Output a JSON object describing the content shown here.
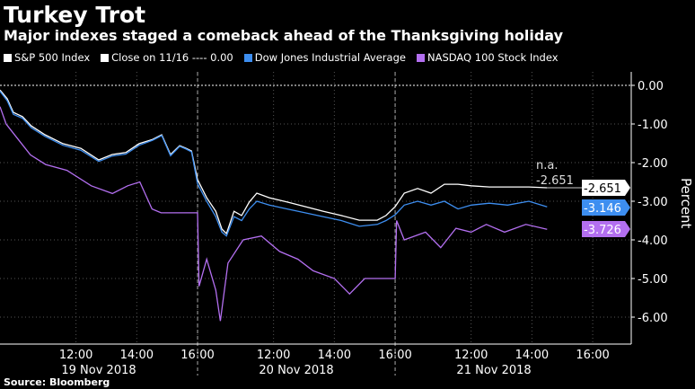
{
  "title": "Turkey Trot",
  "subtitle": "Major indexes staged a comeback ahead of the Thanksgiving holiday",
  "source": "Source: Bloomberg",
  "legend": {
    "sp": "S&P 500 Index",
    "close": "Close on 11/16 ---- 0.00",
    "dow": "Dow Jones Industrial Average",
    "ndx": "NASDAQ 100 Stock Index"
  },
  "annotation": {
    "na": "n.a.",
    "value": "-2.651"
  },
  "chart_data": {
    "type": "line",
    "ylabel": "Percent",
    "ylim": [
      -6.8,
      0.35
    ],
    "yticks": [
      "0.00",
      "-1.00",
      "-2.00",
      "-3.00",
      "-4.00",
      "-5.00",
      "-6.00"
    ],
    "x_units": "trading hours since 19 Nov 2018 09:30 (6.5h per session)",
    "xlim": [
      0,
      20.8
    ],
    "xticks": [
      {
        "x": 2.5,
        "label": "12:00"
      },
      {
        "x": 4.5,
        "label": "14:00"
      },
      {
        "x": 6.5,
        "label": "16:00"
      },
      {
        "x": 9,
        "label": "12:00"
      },
      {
        "x": 11,
        "label": "14:00"
      },
      {
        "x": 13,
        "label": "16:00"
      },
      {
        "x": 15.5,
        "label": "12:00"
      },
      {
        "x": 17.5,
        "label": "14:00"
      },
      {
        "x": 19.5,
        "label": "16:00"
      }
    ],
    "days": [
      {
        "x": 3.25,
        "label": "19 Nov 2018"
      },
      {
        "x": 9.75,
        "label": "20 Nov 2018"
      },
      {
        "x": 16.25,
        "label": "21 Nov 2018"
      }
    ],
    "day_breaks": [
      6.5,
      13
    ],
    "reference": {
      "name": "Close on 11/16",
      "value": 0.0
    },
    "series": [
      {
        "name": "S&P 500 Index",
        "color": "#ffffff",
        "last": "-2.651",
        "points": [
          [
            0,
            -0.12
          ],
          [
            0.24,
            -0.35
          ],
          [
            0.44,
            -0.7
          ],
          [
            0.74,
            -0.81
          ],
          [
            1.03,
            -1.05
          ],
          [
            1.48,
            -1.28
          ],
          [
            2.07,
            -1.51
          ],
          [
            2.66,
            -1.63
          ],
          [
            3.25,
            -1.93
          ],
          [
            3.69,
            -1.79
          ],
          [
            4.14,
            -1.74
          ],
          [
            4.58,
            -1.51
          ],
          [
            5.02,
            -1.4
          ],
          [
            5.32,
            -1.28
          ],
          [
            5.61,
            -1.79
          ],
          [
            5.91,
            -1.56
          ],
          [
            6.12,
            -1.63
          ],
          [
            6.3,
            -1.7
          ],
          [
            6.5,
            -2.44
          ],
          [
            6.8,
            -2.91
          ],
          [
            7.1,
            -3.26
          ],
          [
            7.3,
            -3.72
          ],
          [
            7.45,
            -3.84
          ],
          [
            7.7,
            -3.26
          ],
          [
            7.95,
            -3.37
          ],
          [
            8.2,
            -3.02
          ],
          [
            8.45,
            -2.79
          ],
          [
            8.86,
            -2.91
          ],
          [
            9.45,
            -3.02
          ],
          [
            10.04,
            -3.14
          ],
          [
            10.64,
            -3.26
          ],
          [
            11.23,
            -3.37
          ],
          [
            11.82,
            -3.49
          ],
          [
            12.41,
            -3.49
          ],
          [
            12.7,
            -3.37
          ],
          [
            13,
            -3.14
          ],
          [
            13.3,
            -2.79
          ],
          [
            13.74,
            -2.67
          ],
          [
            14.18,
            -2.79
          ],
          [
            14.62,
            -2.56
          ],
          [
            15.07,
            -2.56
          ],
          [
            15.5,
            -2.6
          ],
          [
            16.1,
            -2.63
          ],
          [
            16.7,
            -2.63
          ],
          [
            17.4,
            -2.63
          ],
          [
            18,
            -2.651
          ]
        ]
      },
      {
        "name": "Dow Jones Industrial Average",
        "color": "#3d8ef0",
        "last": "-3.146",
        "points": [
          [
            0,
            -0.15
          ],
          [
            0.24,
            -0.4
          ],
          [
            0.44,
            -0.75
          ],
          [
            0.74,
            -0.85
          ],
          [
            1.03,
            -1.1
          ],
          [
            1.48,
            -1.32
          ],
          [
            2.07,
            -1.55
          ],
          [
            2.66,
            -1.68
          ],
          [
            3.25,
            -1.97
          ],
          [
            3.69,
            -1.83
          ],
          [
            4.14,
            -1.78
          ],
          [
            4.58,
            -1.55
          ],
          [
            5.02,
            -1.42
          ],
          [
            5.32,
            -1.3
          ],
          [
            5.61,
            -1.82
          ],
          [
            5.91,
            -1.58
          ],
          [
            6.12,
            -1.65
          ],
          [
            6.3,
            -1.72
          ],
          [
            6.5,
            -2.55
          ],
          [
            6.8,
            -3.0
          ],
          [
            7.1,
            -3.4
          ],
          [
            7.3,
            -3.8
          ],
          [
            7.45,
            -3.9
          ],
          [
            7.7,
            -3.4
          ],
          [
            7.95,
            -3.5
          ],
          [
            8.2,
            -3.2
          ],
          [
            8.45,
            -3.0
          ],
          [
            8.86,
            -3.1
          ],
          [
            9.45,
            -3.2
          ],
          [
            10.04,
            -3.3
          ],
          [
            10.64,
            -3.4
          ],
          [
            11.23,
            -3.5
          ],
          [
            11.82,
            -3.65
          ],
          [
            12.41,
            -3.6
          ],
          [
            12.7,
            -3.5
          ],
          [
            13,
            -3.35
          ],
          [
            13.3,
            -3.1
          ],
          [
            13.74,
            -3.0
          ],
          [
            14.18,
            -3.1
          ],
          [
            14.62,
            -3.0
          ],
          [
            15.07,
            -3.2
          ],
          [
            15.5,
            -3.1
          ],
          [
            16.1,
            -3.05
          ],
          [
            16.7,
            -3.1
          ],
          [
            17.4,
            -3.0
          ],
          [
            18,
            -3.146
          ]
        ]
      },
      {
        "name": "NASDAQ 100 Stock Index",
        "color": "#b36ff0",
        "last": "-3.726",
        "points": [
          [
            0,
            -0.55
          ],
          [
            0.2,
            -1.0
          ],
          [
            0.6,
            -1.4
          ],
          [
            1.0,
            -1.8
          ],
          [
            1.5,
            -2.05
          ],
          [
            2.2,
            -2.2
          ],
          [
            3.0,
            -2.6
          ],
          [
            3.7,
            -2.8
          ],
          [
            4.2,
            -2.6
          ],
          [
            4.6,
            -2.5
          ],
          [
            5.0,
            -3.2
          ],
          [
            5.3,
            -3.3
          ],
          [
            6.2,
            -3.3
          ],
          [
            6.5,
            -3.3
          ],
          [
            6.55,
            -5.2
          ],
          [
            6.8,
            -4.5
          ],
          [
            7.1,
            -5.3
          ],
          [
            7.25,
            -6.1
          ],
          [
            7.5,
            -4.6
          ],
          [
            8.0,
            -4.0
          ],
          [
            8.6,
            -3.9
          ],
          [
            9.2,
            -4.3
          ],
          [
            9.8,
            -4.5
          ],
          [
            10.3,
            -4.8
          ],
          [
            11.0,
            -5.0
          ],
          [
            11.5,
            -5.4
          ],
          [
            12.0,
            -5.0
          ],
          [
            12.5,
            -5.0
          ],
          [
            13.0,
            -5.0
          ],
          [
            13.05,
            -3.5
          ],
          [
            13.3,
            -4.0
          ],
          [
            14.0,
            -3.8
          ],
          [
            14.5,
            -4.2
          ],
          [
            15.0,
            -3.7
          ],
          [
            15.5,
            -3.8
          ],
          [
            16.0,
            -3.6
          ],
          [
            16.6,
            -3.8
          ],
          [
            17.3,
            -3.6
          ],
          [
            18,
            -3.726
          ]
        ]
      }
    ]
  }
}
